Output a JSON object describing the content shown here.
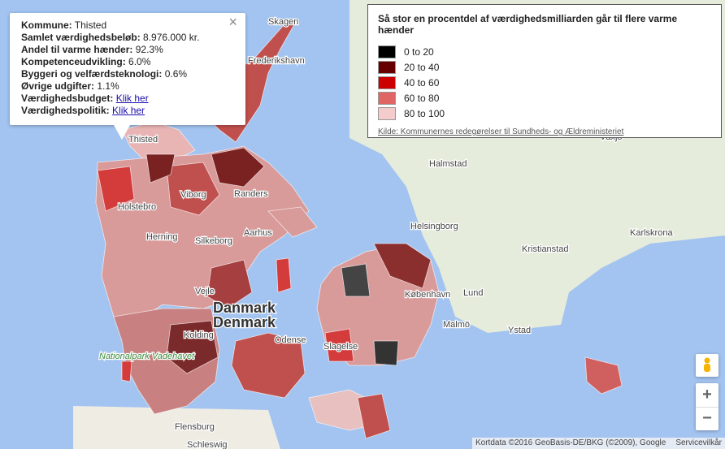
{
  "popup": {
    "close": "×",
    "rows": [
      {
        "label": "Kommune:",
        "value": "Thisted"
      },
      {
        "label": "Samlet værdighedsbeløb:",
        "value": "8.976.000 kr."
      },
      {
        "label": "Andel til varme hænder:",
        "value": "92.3%"
      },
      {
        "label": "Kompetenceudvikling:",
        "value": "6.0%"
      },
      {
        "label": "Byggeri og velfærdsteknologi:",
        "value": "0.6%"
      },
      {
        "label": "Øvrige udgifter:",
        "value": "1.1%"
      },
      {
        "label": "Værdighedsbudget:",
        "link": "Klik her"
      },
      {
        "label": "Værdighedspolitik:",
        "link": "Klik her"
      }
    ]
  },
  "legend": {
    "title": "Så stor en procentdel af værdighedsmilliarden går til flere varme hænder",
    "items": [
      {
        "label": "0 to 20",
        "color": "#000000"
      },
      {
        "label": "20 to 40",
        "color": "#660000"
      },
      {
        "label": "40 to 60",
        "color": "#cc0000"
      },
      {
        "label": "60 to 80",
        "color": "#e06666"
      },
      {
        "label": "80 to 100",
        "color": "#f4cccc"
      }
    ],
    "source": "Kilde: Kommunernes redegørelser til Sundheds- og Ældreministeriet"
  },
  "map_labels": [
    "Skagen",
    "Frederikshavn",
    "Thisted",
    "Viborg",
    "Randers",
    "Herning",
    "Aarhus",
    "Holstebro",
    "Silkeborg",
    "Vejle",
    "Danmark",
    "Denmark",
    "Kolding",
    "Odense",
    "Slagelse",
    "København",
    "Helsingborg",
    "Lund",
    "Malmö",
    "Ystad",
    "Kristianstad",
    "Karlskrona",
    "Halmstad",
    "Växjö",
    "Flensburg",
    "Schleswig",
    "Nationalpark Vadehavet"
  ],
  "attribution": "Kortdata ©2016 GeoBasis-DE/BKG (©2009), Google",
  "terms": "Servicevilkår",
  "zoom": {
    "in": "+",
    "out": "−"
  }
}
